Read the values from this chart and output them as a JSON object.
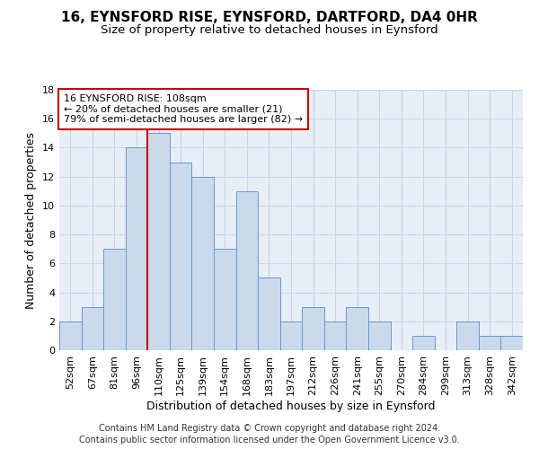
{
  "title_line1": "16, EYNSFORD RISE, EYNSFORD, DARTFORD, DA4 0HR",
  "title_line2": "Size of property relative to detached houses in Eynsford",
  "xlabel": "Distribution of detached houses by size in Eynsford",
  "ylabel": "Number of detached properties",
  "footnote_line1": "Contains HM Land Registry data © Crown copyright and database right 2024.",
  "footnote_line2": "Contains public sector information licensed under the Open Government Licence v3.0.",
  "categories": [
    "52sqm",
    "67sqm",
    "81sqm",
    "96sqm",
    "110sqm",
    "125sqm",
    "139sqm",
    "154sqm",
    "168sqm",
    "183sqm",
    "197sqm",
    "212sqm",
    "226sqm",
    "241sqm",
    "255sqm",
    "270sqm",
    "284sqm",
    "299sqm",
    "313sqm",
    "328sqm",
    "342sqm"
  ],
  "values": [
    2,
    3,
    7,
    14,
    15,
    13,
    12,
    7,
    11,
    5,
    2,
    3,
    2,
    3,
    2,
    0,
    1,
    0,
    2,
    1,
    1
  ],
  "bar_color": "#cad9ec",
  "bar_edge_color": "#6699cc",
  "highlight_color": "#cc0000",
  "highlight_bar_index": 4,
  "annotation_text_line1": "16 EYNSFORD RISE: 108sqm",
  "annotation_text_line2": "← 20% of detached houses are smaller (21)",
  "annotation_text_line3": "79% of semi-detached houses are larger (82) →",
  "ylim_max": 18,
  "yticks": [
    0,
    2,
    4,
    6,
    8,
    10,
    12,
    14,
    16,
    18
  ],
  "grid_color": "#c8d4e8",
  "bg_color": "#e8eef6",
  "title1_fontsize": 11,
  "title2_fontsize": 9.5,
  "axis_label_fontsize": 9,
  "tick_fontsize": 8,
  "annotation_fontsize": 8,
  "footnote_fontsize": 7
}
